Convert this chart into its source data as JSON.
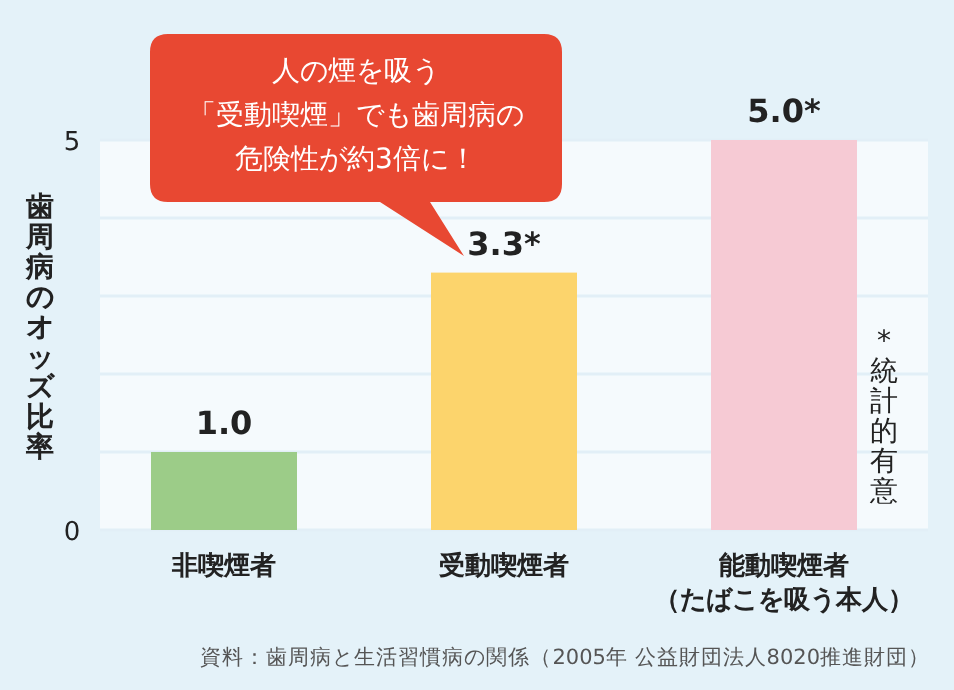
{
  "chart_data": {
    "type": "bar",
    "categories": [
      "非喫煙者",
      "受動喫煙者",
      "能動喫煙者（たばこを吸う本人）"
    ],
    "values": [
      1.0,
      3.3,
      5.0
    ],
    "colors": [
      "#9ccc88",
      "#fcd46c",
      "#f6cad4"
    ],
    "value_labels": [
      "1.0",
      "3.3*",
      "5.0*"
    ],
    "ylabel": "歯周病のオッズ比率",
    "ylim": [
      0,
      5
    ],
    "yticks": [
      0,
      {
        "value": 1,
        "label": null
      },
      {
        "value": 2,
        "label": null
      },
      {
        "value": 3,
        "label": null
      },
      {
        "value": 4,
        "label": null
      },
      5
    ],
    "grid": "y",
    "annotations": [
      "人の煙を吸う「受動喫煙」でも歯周病の危険性が約3倍に！",
      "*統計的有意",
      "資料：歯周病と生活習慣病の関係（2005年 公益財団法人8020推進財団）"
    ]
  }
}
